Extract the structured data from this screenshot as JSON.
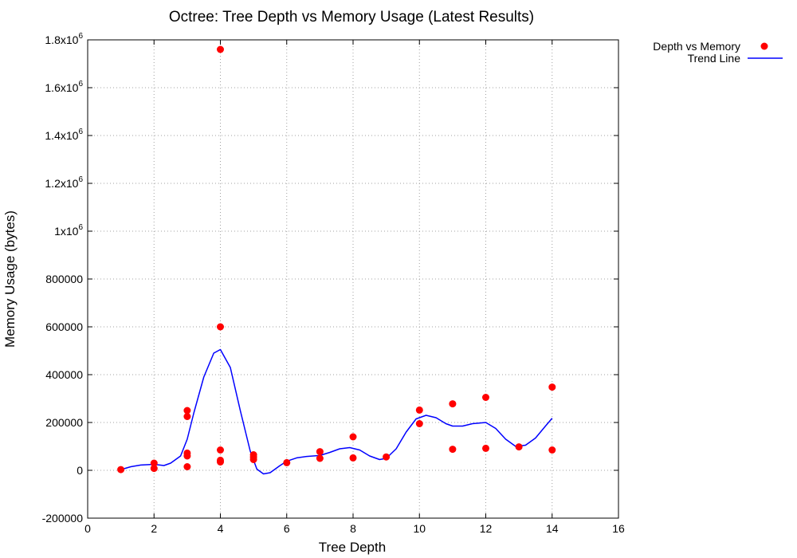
{
  "chart_data": {
    "type": "scatter",
    "title": "Octree: Tree Depth vs Memory Usage (Latest Results)",
    "xlabel": "Tree Depth",
    "ylabel": "Memory Usage (bytes)",
    "xlim": [
      0,
      16
    ],
    "ylim": [
      -200000,
      1800000
    ],
    "grid": true,
    "legend_position": "top-right (outside)",
    "x_ticks": [
      0,
      2,
      4,
      6,
      8,
      10,
      12,
      14,
      16
    ],
    "x_tick_labels": [
      "0",
      "2",
      "4",
      "6",
      "8",
      "10",
      "12",
      "14",
      "16"
    ],
    "y_ticks": [
      -200000,
      0,
      200000,
      400000,
      600000,
      800000,
      1000000,
      1200000,
      1400000,
      1600000,
      1800000
    ],
    "y_tick_labels": [
      {
        "base": "-200000",
        "exp": ""
      },
      {
        "base": "0",
        "exp": ""
      },
      {
        "base": "200000",
        "exp": ""
      },
      {
        "base": "400000",
        "exp": ""
      },
      {
        "base": "600000",
        "exp": ""
      },
      {
        "base": "800000",
        "exp": ""
      },
      {
        "base": "1x10",
        "exp": "6"
      },
      {
        "base": "1.2x10",
        "exp": "6"
      },
      {
        "base": "1.4x10",
        "exp": "6"
      },
      {
        "base": "1.6x10",
        "exp": "6"
      },
      {
        "base": "1.8x10",
        "exp": "6"
      }
    ],
    "series": [
      {
        "name": "Depth vs Memory",
        "kind": "points",
        "color": "#ff0000",
        "points": [
          [
            1,
            3000
          ],
          [
            2,
            30000
          ],
          [
            2,
            8000
          ],
          [
            3,
            250000
          ],
          [
            3,
            225000
          ],
          [
            3,
            72000
          ],
          [
            3,
            60000
          ],
          [
            3,
            15000
          ],
          [
            4,
            1760000
          ],
          [
            4,
            600000
          ],
          [
            4,
            85000
          ],
          [
            4,
            42000
          ],
          [
            4,
            35000
          ],
          [
            5,
            65000
          ],
          [
            5,
            55000
          ],
          [
            5,
            45000
          ],
          [
            6,
            32000
          ],
          [
            7,
            78000
          ],
          [
            7,
            50000
          ],
          [
            8,
            140000
          ],
          [
            8,
            52000
          ],
          [
            9,
            56000
          ],
          [
            10,
            252000
          ],
          [
            10,
            195000
          ],
          [
            11,
            278000
          ],
          [
            11,
            88000
          ],
          [
            12,
            305000
          ],
          [
            12,
            92000
          ],
          [
            13,
            98000
          ],
          [
            14,
            348000
          ],
          [
            14,
            85000
          ]
        ]
      },
      {
        "name": "Trend Line",
        "kind": "line",
        "color": "#0000ff",
        "points": [
          [
            1,
            3000
          ],
          [
            1.3,
            15000
          ],
          [
            1.6,
            22000
          ],
          [
            2,
            25000
          ],
          [
            2.3,
            20000
          ],
          [
            2.5,
            30000
          ],
          [
            2.8,
            60000
          ],
          [
            3,
            130000
          ],
          [
            3.2,
            240000
          ],
          [
            3.5,
            390000
          ],
          [
            3.8,
            490000
          ],
          [
            4,
            505000
          ],
          [
            4.3,
            430000
          ],
          [
            4.6,
            250000
          ],
          [
            4.9,
            80000
          ],
          [
            5.1,
            5000
          ],
          [
            5.3,
            -15000
          ],
          [
            5.5,
            -10000
          ],
          [
            5.8,
            20000
          ],
          [
            6,
            38000
          ],
          [
            6.3,
            52000
          ],
          [
            6.6,
            58000
          ],
          [
            7,
            62000
          ],
          [
            7.3,
            75000
          ],
          [
            7.6,
            90000
          ],
          [
            7.9,
            95000
          ],
          [
            8.2,
            85000
          ],
          [
            8.5,
            60000
          ],
          [
            8.8,
            45000
          ],
          [
            9,
            50000
          ],
          [
            9.3,
            90000
          ],
          [
            9.6,
            160000
          ],
          [
            9.9,
            215000
          ],
          [
            10.2,
            230000
          ],
          [
            10.5,
            220000
          ],
          [
            10.8,
            195000
          ],
          [
            11,
            185000
          ],
          [
            11.3,
            185000
          ],
          [
            11.6,
            195000
          ],
          [
            12,
            200000
          ],
          [
            12.3,
            175000
          ],
          [
            12.6,
            130000
          ],
          [
            12.9,
            100000
          ],
          [
            13.2,
            105000
          ],
          [
            13.5,
            135000
          ],
          [
            13.8,
            185000
          ],
          [
            14,
            218000
          ]
        ]
      }
    ]
  }
}
